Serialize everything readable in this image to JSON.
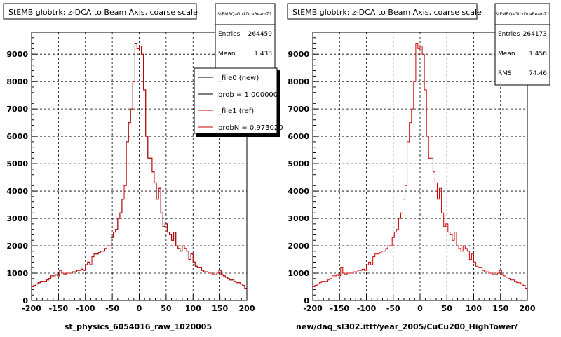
{
  "pads": [
    {
      "title": "StEMB globtrk: z-DCA to Beam Axis, coarse scale",
      "xlabel": "st_physics_6054016_raw_1020005",
      "stats": {
        "name": "StEMBQaGtrkDcaBeamZ1",
        "rows": [
          {
            "label": "Entries",
            "value": "264459"
          },
          {
            "label": "Mean",
            "value": "1.438"
          }
        ]
      },
      "legend": [
        {
          "label": "_file0 (new)",
          "color": "#000000"
        },
        {
          "label": "prob = 1.000000",
          "color": "#000000"
        },
        {
          "label": "_file1 (ref)",
          "color": "#cc0000"
        },
        {
          "label": "probN = 0.973020",
          "color": "#cc0000"
        }
      ]
    },
    {
      "title": "StEMB globtrk: z-DCA to Beam Axis, coarse scale",
      "xlabel": "new/daq_sl302.ittf/year_2005/CuCu200_HighTower/",
      "stats": {
        "name": "StEMBQaGtrkDcaBeamZ1",
        "rows": [
          {
            "label": "Entries",
            "value": "264173"
          },
          {
            "label": "Mean",
            "value": "1.456"
          },
          {
            "label": "RMS",
            "value": "74.46"
          }
        ]
      },
      "legend": []
    }
  ],
  "chart_data": [
    {
      "type": "histogram",
      "title": "StEMB globtrk: z-DCA to Beam Axis, coarse scale",
      "xlabel": "st_physics_6054016_raw_1020005",
      "xlim": [
        -200,
        200
      ],
      "ylim": [
        0,
        9800
      ],
      "xticks": [
        -200,
        -150,
        -100,
        -50,
        0,
        50,
        100,
        150,
        200
      ],
      "yticks": [
        0,
        1000,
        2000,
        3000,
        4000,
        5000,
        6000,
        7000,
        8000,
        9000
      ],
      "grid": true,
      "bin_width": 4,
      "series": [
        {
          "name": "_file0 (new)",
          "color": "#000000",
          "values": [
            500,
            550,
            600,
            650,
            700,
            700,
            700,
            750,
            800,
            900,
            900,
            950,
            900,
            1100,
            1000,
            950,
            1000,
            1000,
            1000,
            1050,
            1050,
            1100,
            1100,
            1150,
            1100,
            1300,
            1400,
            1300,
            1600,
            1700,
            1700,
            1750,
            1800,
            1800,
            1900,
            2000,
            2000,
            2300,
            2500,
            2600,
            3000,
            3200,
            3700,
            4200,
            5800,
            6500,
            7000,
            8000,
            9400,
            9200,
            9300,
            9000,
            7700,
            6000,
            5200,
            5200,
            4700,
            4300,
            3700,
            4100,
            3200,
            2700,
            2800,
            2500,
            2400,
            2200,
            2500,
            2000,
            1900,
            1800,
            2000,
            1900,
            1800,
            1500,
            1700,
            1400,
            1250,
            1200,
            1200,
            1100,
            1050,
            1050,
            1000,
            1000,
            950,
            950,
            1000,
            1100,
            950,
            900,
            850,
            800,
            750,
            750,
            700,
            650,
            650,
            600,
            550,
            450
          ]
        },
        {
          "name": "_file1 (ref)",
          "color": "#cc0000",
          "values": [
            500,
            550,
            600,
            650,
            700,
            700,
            700,
            750,
            800,
            900,
            900,
            950,
            900,
            1100,
            1000,
            950,
            1000,
            1000,
            1000,
            1050,
            1050,
            1100,
            1100,
            1150,
            1100,
            1300,
            1400,
            1300,
            1600,
            1700,
            1700,
            1750,
            1800,
            1800,
            1900,
            2000,
            2000,
            2300,
            2500,
            2600,
            3000,
            3200,
            3700,
            4200,
            5800,
            6500,
            7000,
            8000,
            9400,
            9200,
            9300,
            9000,
            7700,
            6000,
            5200,
            5200,
            4700,
            4300,
            3700,
            4100,
            3200,
            2700,
            2800,
            2500,
            2400,
            2200,
            2500,
            2000,
            1900,
            1800,
            2000,
            1900,
            1800,
            1500,
            1700,
            1400,
            1250,
            1200,
            1200,
            1100,
            1050,
            1050,
            1000,
            1000,
            950,
            950,
            1000,
            1100,
            950,
            900,
            850,
            800,
            750,
            750,
            700,
            650,
            650,
            600,
            550,
            450
          ]
        }
      ]
    },
    {
      "type": "histogram",
      "title": "StEMB globtrk: z-DCA to Beam Axis, coarse scale",
      "xlabel": "new/daq_sl302.ittf/year_2005/CuCu200_HighTower/",
      "xlim": [
        -200,
        200
      ],
      "ylim": [
        0,
        9800
      ],
      "xticks": [
        -200,
        -150,
        -100,
        -50,
        0,
        50,
        100,
        150,
        200
      ],
      "yticks": [
        0,
        1000,
        2000,
        3000,
        4000,
        5000,
        6000,
        7000,
        8000,
        9000
      ],
      "grid": true,
      "bin_width": 4,
      "series": [
        {
          "color": "#cc0000",
          "values": [
            500,
            550,
            600,
            650,
            700,
            700,
            700,
            750,
            800,
            900,
            900,
            950,
            900,
            1200,
            1000,
            950,
            1000,
            1000,
            1000,
            1050,
            1050,
            1100,
            1100,
            1150,
            1100,
            1300,
            1400,
            1300,
            1600,
            1700,
            1700,
            1750,
            1800,
            1800,
            1900,
            2000,
            2000,
            2300,
            2500,
            2600,
            3000,
            3200,
            3700,
            4200,
            5800,
            6500,
            7000,
            8000,
            9400,
            9200,
            9300,
            9000,
            7700,
            6000,
            5200,
            5200,
            4700,
            4300,
            3700,
            4100,
            3200,
            2700,
            2800,
            2500,
            2400,
            2200,
            2500,
            2000,
            1900,
            1800,
            2000,
            1900,
            1800,
            1500,
            1700,
            1400,
            1250,
            1200,
            1200,
            1100,
            1050,
            1050,
            1000,
            1000,
            950,
            950,
            1000,
            1100,
            950,
            900,
            850,
            800,
            750,
            750,
            700,
            650,
            650,
            600,
            550,
            450
          ]
        }
      ]
    }
  ]
}
